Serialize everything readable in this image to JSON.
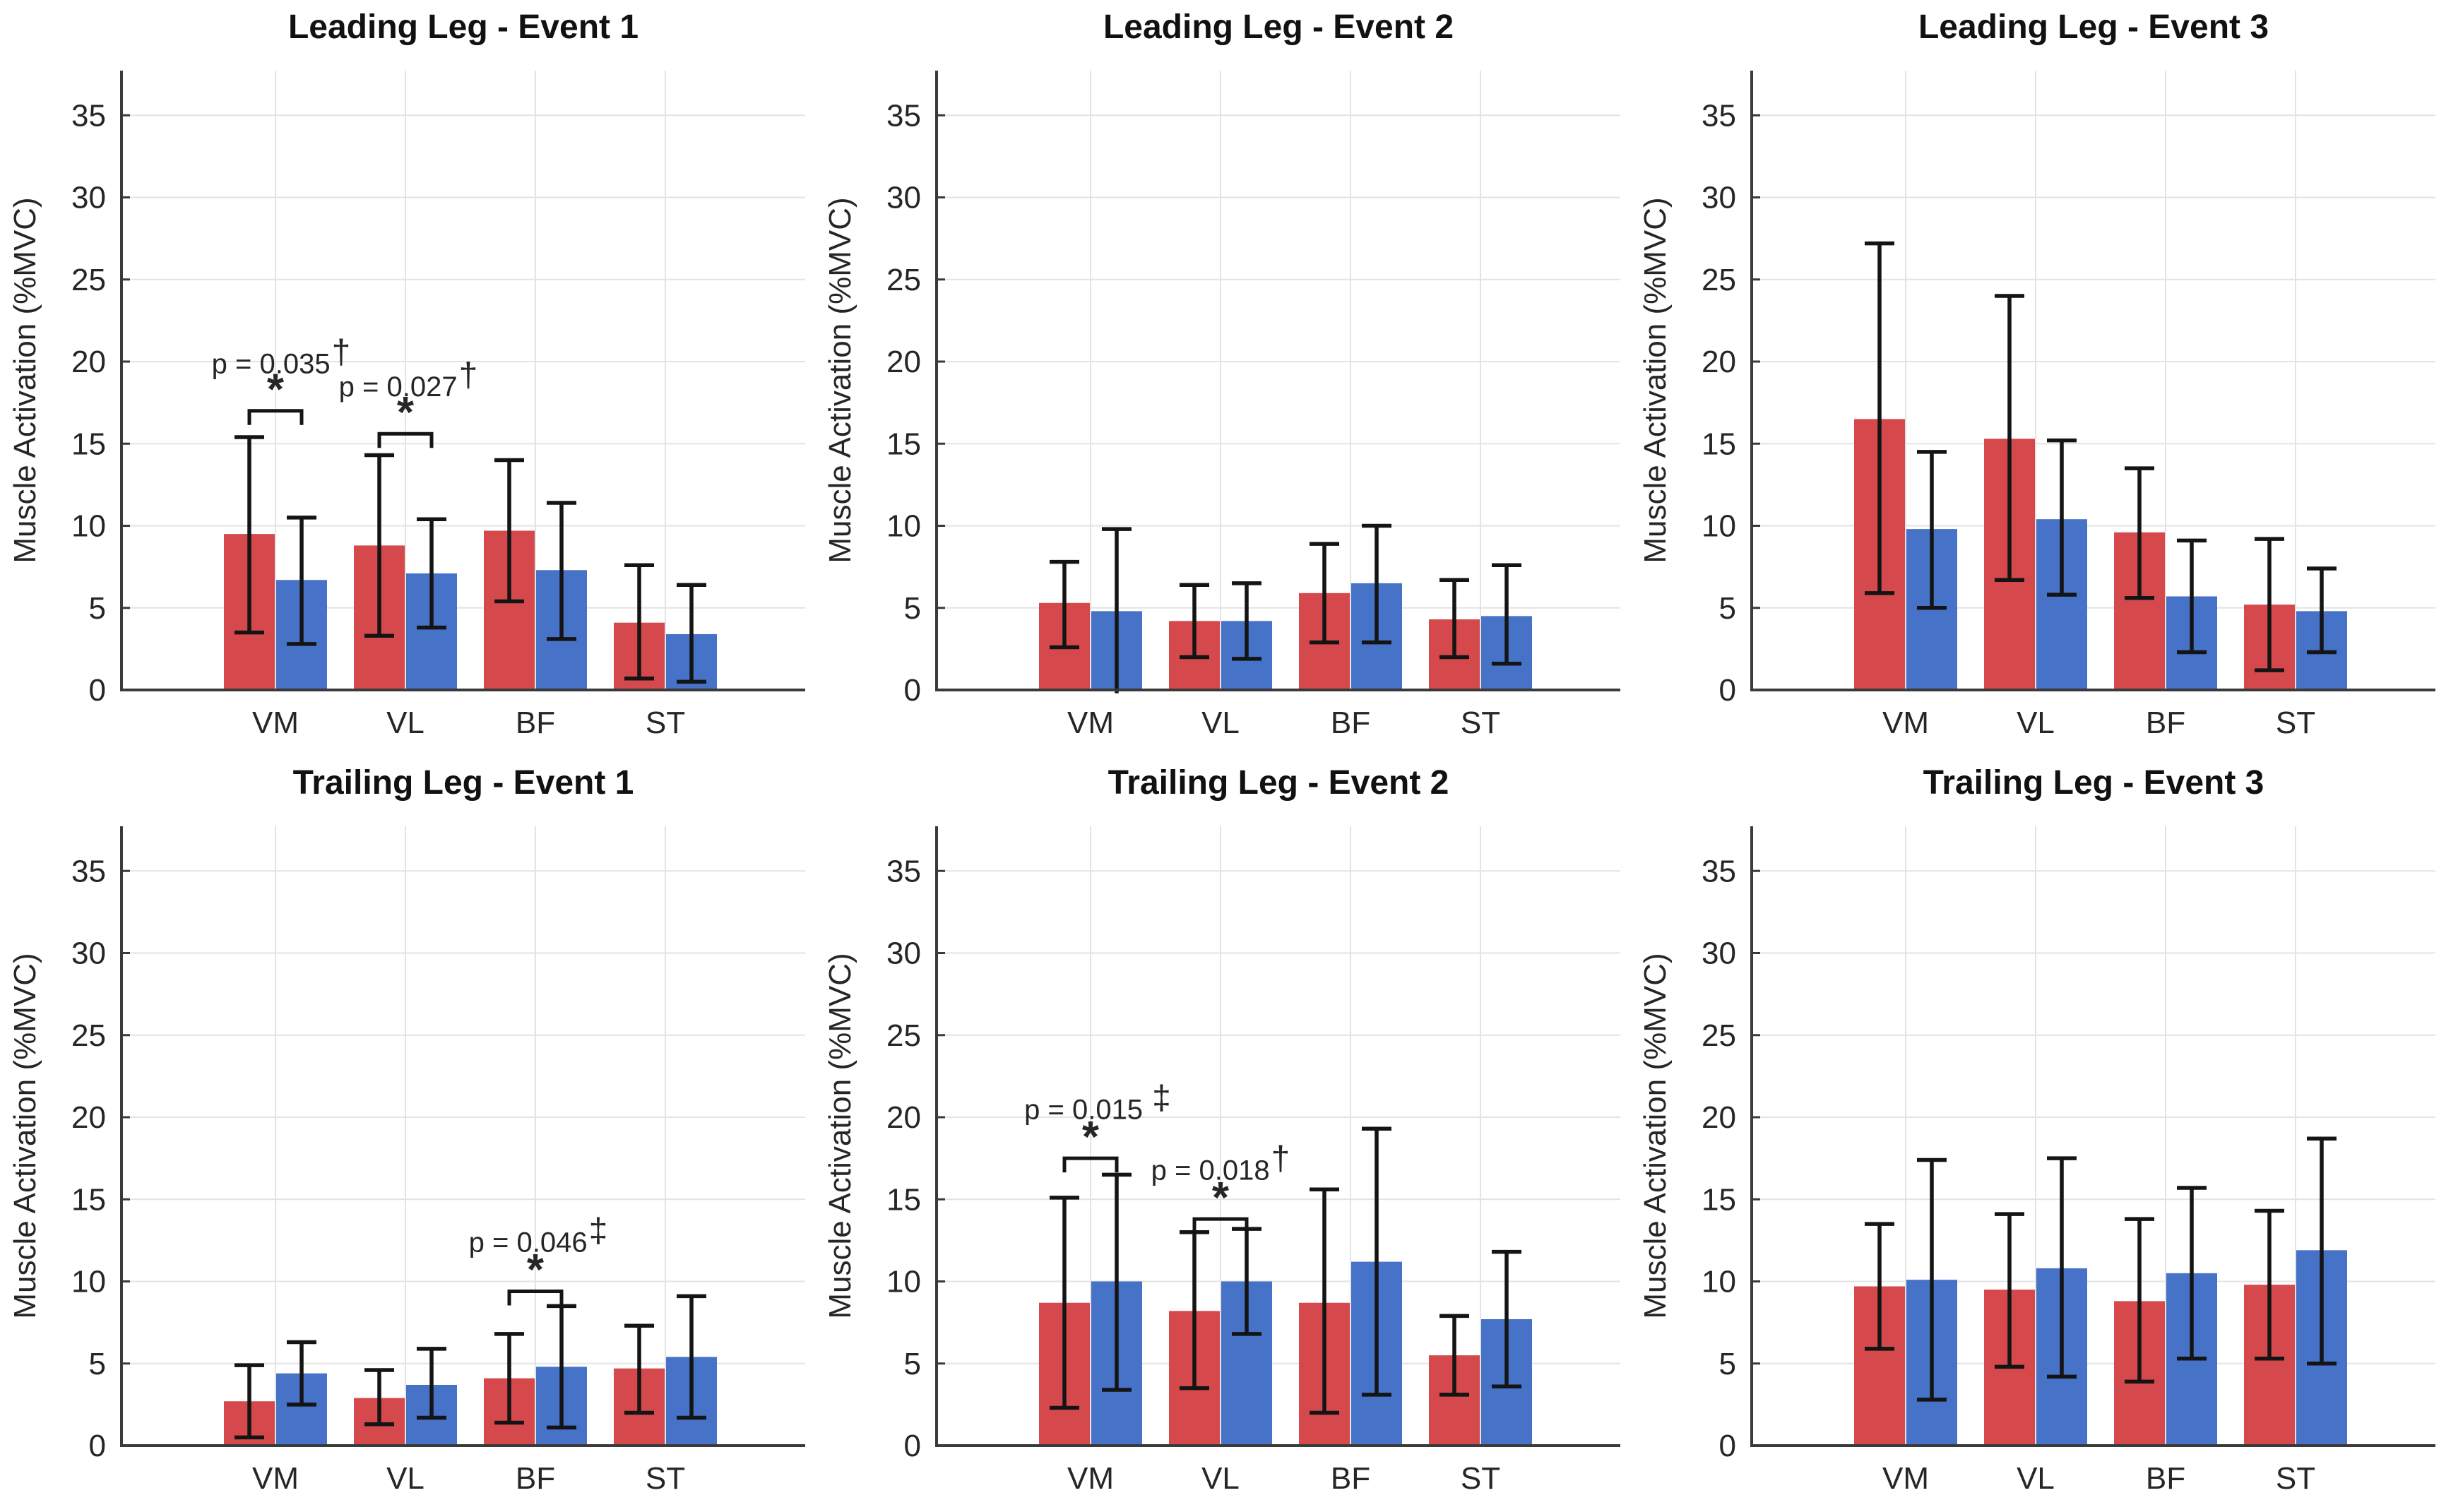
{
  "figure": {
    "background": "#ffffff",
    "ylabel": "Muscle Activation (%MVC)",
    "yticks": [
      0,
      5,
      10,
      15,
      20,
      25,
      30,
      35
    ],
    "ytick_labels": [
      "0",
      "5",
      "10",
      "15",
      "20",
      "25",
      "30",
      "35"
    ],
    "ylim": [
      0,
      37.7
    ],
    "categories": [
      "VM",
      "VL",
      "BF",
      "ST"
    ],
    "grid": true,
    "legend": "none",
    "series_colors": {
      "red": "#D5494C",
      "blue": "#4672C8"
    },
    "grid_color": "#E3E3E3",
    "axis_color": "#3A3A3A",
    "errorbar_color": "#141414"
  },
  "chart_data": [
    {
      "type": "bar",
      "title": "Leading Leg - Event 1",
      "categories": [
        "VM",
        "VL",
        "BF",
        "ST"
      ],
      "series": [
        {
          "name": "series-red",
          "color": "#D5494C",
          "values": [
            9.5,
            8.8,
            9.7,
            4.1
          ],
          "err_low": [
            3.5,
            3.3,
            5.4,
            0.7
          ],
          "err_high": [
            15.4,
            14.3,
            14.0,
            7.6
          ]
        },
        {
          "name": "series-blue",
          "color": "#4672C8",
          "values": [
            6.7,
            7.1,
            7.3,
            3.4
          ],
          "err_low": [
            2.8,
            3.8,
            3.1,
            0.5
          ],
          "err_high": [
            10.5,
            10.4,
            11.4,
            6.4
          ]
        }
      ],
      "annotations": [
        {
          "cat": 0,
          "text": "p = 0.035",
          "sup": "†",
          "star": "*",
          "bracket_v": 17.0,
          "star_v": 17.4,
          "label_v": 19.3,
          "dx": 8
        },
        {
          "cat": 1,
          "text": "p = 0.027",
          "sup": "†",
          "star": "*",
          "bracket_v": 15.6,
          "star_v": 16.0,
          "label_v": 17.9,
          "dx": 4
        }
      ]
    },
    {
      "type": "bar",
      "title": "Leading Leg - Event 2",
      "categories": [
        "VM",
        "VL",
        "BF",
        "ST"
      ],
      "series": [
        {
          "name": "series-red",
          "color": "#D5494C",
          "values": [
            5.3,
            4.2,
            5.9,
            4.3
          ],
          "err_low": [
            2.6,
            2.0,
            2.9,
            2.0
          ],
          "err_high": [
            7.8,
            6.4,
            8.9,
            6.7
          ]
        },
        {
          "name": "series-blue",
          "color": "#4672C8",
          "values": [
            4.8,
            4.2,
            6.5,
            4.5
          ],
          "err_low": [
            -0.2,
            1.9,
            2.9,
            1.6
          ],
          "err_high": [
            9.8,
            6.5,
            10.0,
            7.6
          ]
        }
      ],
      "annotations": []
    },
    {
      "type": "bar",
      "title": "Leading Leg - Event 3",
      "categories": [
        "VM",
        "VL",
        "BF",
        "ST"
      ],
      "series": [
        {
          "name": "series-red",
          "color": "#D5494C",
          "values": [
            16.5,
            15.3,
            9.6,
            5.2
          ],
          "err_low": [
            5.9,
            6.7,
            5.6,
            1.2
          ],
          "err_high": [
            27.2,
            24.0,
            13.5,
            9.2
          ]
        },
        {
          "name": "series-blue",
          "color": "#4672C8",
          "values": [
            9.8,
            10.4,
            5.7,
            4.8
          ],
          "err_low": [
            5.0,
            5.8,
            2.3,
            2.3
          ],
          "err_high": [
            14.5,
            15.2,
            9.1,
            7.4
          ]
        }
      ],
      "annotations": []
    },
    {
      "type": "bar",
      "title": "Trailing Leg - Event 1",
      "categories": [
        "VM",
        "VL",
        "BF",
        "ST"
      ],
      "series": [
        {
          "name": "series-red",
          "color": "#D5494C",
          "values": [
            2.7,
            2.9,
            4.1,
            4.7
          ],
          "err_low": [
            0.5,
            1.3,
            1.4,
            2.0
          ],
          "err_high": [
            4.9,
            4.6,
            6.8,
            7.3
          ]
        },
        {
          "name": "series-blue",
          "color": "#4672C8",
          "values": [
            4.4,
            3.7,
            4.8,
            5.4
          ],
          "err_low": [
            2.5,
            1.7,
            1.1,
            1.7
          ],
          "err_high": [
            6.3,
            5.9,
            8.5,
            9.1
          ]
        }
      ],
      "annotations": [
        {
          "cat": 2,
          "text": "p = 0.046",
          "sup": "‡",
          "star": "*",
          "bracket_v": 9.4,
          "star_v": 9.8,
          "label_v": 11.8,
          "dx": 4
        }
      ]
    },
    {
      "type": "bar",
      "title": "Trailing Leg - Event 2",
      "categories": [
        "VM",
        "VL",
        "BF",
        "ST"
      ],
      "series": [
        {
          "name": "series-red",
          "color": "#D5494C",
          "values": [
            8.7,
            8.2,
            8.7,
            5.5
          ],
          "err_low": [
            2.3,
            3.5,
            2.0,
            3.1
          ],
          "err_high": [
            15.1,
            13.0,
            15.6,
            7.9
          ]
        },
        {
          "name": "series-blue",
          "color": "#4672C8",
          "values": [
            10.0,
            10.0,
            11.2,
            7.7
          ],
          "err_low": [
            3.4,
            6.8,
            3.1,
            3.6
          ],
          "err_high": [
            16.5,
            13.2,
            19.3,
            11.8
          ]
        }
      ],
      "annotations": [
        {
          "cat": 0,
          "text": "p = 0.015 ",
          "sup": "‡",
          "star": "*",
          "bracket_v": 17.5,
          "star_v": 17.9,
          "label_v": 19.9,
          "dx": 10
        },
        {
          "cat": 1,
          "text": "p = 0.018",
          "sup": "†",
          "star": "*",
          "bracket_v": 13.8,
          "star_v": 14.2,
          "label_v": 16.2,
          "dx": 0
        }
      ]
    },
    {
      "type": "bar",
      "title": "Trailing Leg - Event 3",
      "categories": [
        "VM",
        "VL",
        "BF",
        "ST"
      ],
      "series": [
        {
          "name": "series-red",
          "color": "#D5494C",
          "values": [
            9.7,
            9.5,
            8.8,
            9.8
          ],
          "err_low": [
            5.9,
            4.8,
            3.9,
            5.3
          ],
          "err_high": [
            13.5,
            14.1,
            13.8,
            14.3
          ]
        },
        {
          "name": "series-blue",
          "color": "#4672C8",
          "values": [
            10.1,
            10.8,
            10.5,
            11.9
          ],
          "err_low": [
            2.8,
            4.2,
            5.3,
            5.0
          ],
          "err_high": [
            17.4,
            17.5,
            15.7,
            18.7
          ]
        }
      ],
      "annotations": []
    }
  ]
}
